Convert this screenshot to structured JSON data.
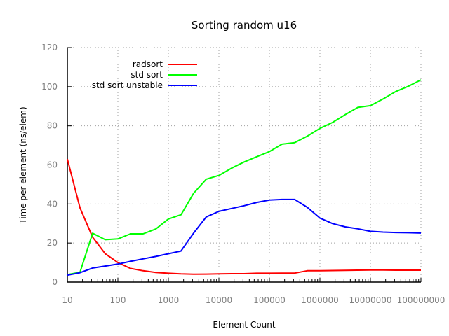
{
  "chart_data": {
    "type": "line",
    "title": "Sorting random u16",
    "xlabel": "Element Count",
    "ylabel": "Time per element (ns/elem)",
    "xscale": "log",
    "xlim": [
      10,
      100000000
    ],
    "ylim": [
      0,
      120
    ],
    "grid": true,
    "legend_position": "top-left (inside)",
    "x_tick_labels": [
      "10",
      "100",
      "1000",
      "10000",
      "100000",
      "1000000",
      "10000000",
      "100000000"
    ],
    "y_tick_labels": [
      "0",
      "20",
      "40",
      "60",
      "80",
      "100",
      "120"
    ],
    "x": [
      10,
      17.8,
      31.6,
      56.2,
      100,
      178,
      316,
      562,
      1000,
      1778,
      3162,
      5623,
      10000,
      17783,
      31623,
      56234,
      100000,
      177828,
      316228,
      562341,
      1000000,
      1778279,
      3162278,
      5623413,
      10000000,
      17782794,
      31622777,
      56234133,
      100000000
    ],
    "series": [
      {
        "name": "radsort",
        "color": "#ff0000",
        "values": [
          63,
          38,
          23,
          14.5,
          10,
          7,
          5.8,
          4.9,
          4.5,
          4.2,
          4.0,
          4.1,
          4.2,
          4.3,
          4.3,
          4.5,
          4.5,
          4.6,
          4.6,
          5.8,
          5.8,
          5.9,
          6.0,
          6.1,
          6.2,
          6.2,
          6.1,
          6.1,
          6.1
        ]
      },
      {
        "name": "std sort",
        "color": "#00ff00",
        "values": [
          3.8,
          5,
          25,
          21.7,
          22.1,
          24.7,
          24.7,
          27.2,
          32.3,
          34.5,
          45.5,
          52.7,
          54.6,
          58.3,
          61.5,
          64.2,
          66.8,
          70.6,
          71.4,
          74.7,
          78.7,
          81.7,
          85.7,
          89.4,
          90.3,
          93.7,
          97.5,
          100.2,
          103.5
        ]
      },
      {
        "name": "std sort unstable",
        "color": "#0000ff",
        "values": [
          3.5,
          4.8,
          7.2,
          8.2,
          9.2,
          10.6,
          11.9,
          13.1,
          14.5,
          15.9,
          25.1,
          33.4,
          36.2,
          37.7,
          39.1,
          40.8,
          42.0,
          42.3,
          42.3,
          38.3,
          32.8,
          30.0,
          28.3,
          27.3,
          26.0,
          25.6,
          25.4,
          25.3,
          25.1
        ]
      }
    ]
  }
}
